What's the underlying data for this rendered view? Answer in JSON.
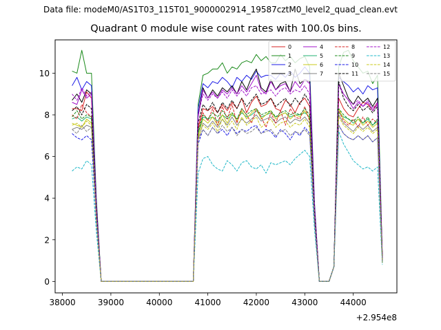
{
  "figure": {
    "suptitle": "Data file: modeM0/AS1T03_115T01_9000002914_19587cztM0_level2_quad_clean.evt",
    "title": "Quadrant 0 module wise count rates with 100.0s bins.",
    "offset_text": "+2.954e8"
  },
  "chart_data": {
    "type": "line",
    "title": "Quadrant 0 module wise count rates with 100.0s bins.",
    "xlabel": "",
    "ylabel": "",
    "x_offset": 295400000,
    "xlim": [
      37850,
      44900
    ],
    "ylim": [
      -0.55,
      11.6
    ],
    "xticks": [
      38000,
      39000,
      40000,
      41000,
      42000,
      43000,
      44000
    ],
    "yticks": [
      0,
      2,
      4,
      6,
      8,
      10
    ],
    "grid": false,
    "legend": {
      "position": "top-right",
      "columns": 4
    },
    "x": [
      38200,
      38300,
      38400,
      38500,
      38600,
      38700,
      38800,
      38900,
      39000,
      39100,
      39200,
      39300,
      39400,
      39500,
      39600,
      39700,
      39800,
      39900,
      40000,
      40100,
      40200,
      40300,
      40400,
      40500,
      40600,
      40700,
      40800,
      40900,
      41000,
      41100,
      41200,
      41300,
      41400,
      41500,
      41600,
      41700,
      41800,
      41900,
      42000,
      42100,
      42200,
      42300,
      42400,
      42500,
      42600,
      42700,
      42800,
      42900,
      43000,
      43100,
      43200,
      43300,
      43400,
      43500,
      43600,
      43700,
      43800,
      43900,
      44000,
      44100,
      44200,
      44300,
      44400,
      44500,
      44600
    ],
    "series": [
      {
        "name": "0",
        "color": "#d62020",
        "dash": "solid",
        "values": [
          8.3,
          8.3,
          8.2,
          9.1,
          8.8,
          3.5,
          0,
          0,
          0,
          0,
          0,
          0,
          0,
          0,
          0,
          0,
          0,
          0,
          0,
          0,
          0,
          0,
          0,
          0,
          0,
          0,
          7.4,
          8.3,
          8.2,
          8.4,
          8.1,
          8.5,
          8.2,
          8.6,
          8.3,
          8.8,
          8.1,
          8.6,
          8.9,
          8.4,
          8.5,
          8.8,
          8.3,
          8.2,
          8.7,
          8.5,
          8.1,
          8.6,
          8.8,
          8.4,
          3.4,
          0,
          0,
          0,
          0.7,
          8.8,
          8.3,
          8.0,
          7.9,
          8.3,
          8.6,
          8.5,
          8.2,
          8.6,
          1.2
        ]
      },
      {
        "name": "1",
        "color": "#1a8a1a",
        "dash": "solid",
        "values": [
          10.1,
          10.0,
          11.1,
          10.0,
          10.0,
          4.0,
          0,
          0,
          0,
          0,
          0,
          0,
          0,
          0,
          0,
          0,
          0,
          0,
          0,
          0,
          0,
          0,
          0,
          0,
          0,
          0,
          8.5,
          9.9,
          10.0,
          10.2,
          10.2,
          10.5,
          10.0,
          10.3,
          10.2,
          10.5,
          10.6,
          10.5,
          10.9,
          10.6,
          10.8,
          10.5,
          10.5,
          10.9,
          10.6,
          10.8,
          10.5,
          10.7,
          10.8,
          10.3,
          3.8,
          0,
          0,
          0,
          0.7,
          10.3,
          11.0,
          11.1,
          10.6,
          10.3,
          10.0,
          10.1,
          9.5,
          9.9,
          1.2
        ]
      },
      {
        "name": "2",
        "color": "#1a1ae6",
        "dash": "solid",
        "values": [
          9.4,
          9.8,
          9.2,
          9.6,
          9.4,
          3.8,
          0,
          0,
          0,
          0,
          0,
          0,
          0,
          0,
          0,
          0,
          0,
          0,
          0,
          0,
          0,
          0,
          0,
          0,
          0,
          0,
          8.3,
          9.5,
          9.3,
          9.6,
          9.5,
          9.8,
          9.6,
          9.3,
          9.8,
          9.6,
          9.9,
          9.7,
          10.1,
          9.8,
          9.9,
          9.9,
          9.7,
          10.0,
          9.8,
          10.1,
          9.8,
          10.0,
          10.3,
          10.0,
          3.7,
          0,
          0,
          0,
          0.7,
          9.8,
          9.6,
          9.4,
          9.1,
          9.3,
          9.0,
          9.4,
          9.2,
          9.3,
          1.1
        ]
      },
      {
        "name": "3",
        "color": "#000000",
        "dash": "solid",
        "values": [
          8.7,
          9.0,
          8.6,
          9.2,
          9.0,
          3.7,
          0,
          0,
          0,
          0,
          0,
          0,
          0,
          0,
          0,
          0,
          0,
          0,
          0,
          0,
          0,
          0,
          0,
          0,
          0,
          0,
          8.0,
          9.3,
          8.8,
          9.2,
          8.9,
          9.3,
          9.1,
          9.4,
          9.0,
          9.6,
          9.2,
          9.8,
          10.2,
          9.3,
          9.1,
          9.7,
          9.2,
          9.5,
          9.6,
          9.1,
          10.2,
          9.5,
          9.7,
          9.6,
          3.6,
          0,
          0,
          0,
          0.7,
          10.0,
          9.4,
          8.8,
          8.5,
          8.9,
          8.6,
          8.8,
          8.4,
          8.8,
          1.2
        ]
      },
      {
        "name": "4",
        "color": "#a010c8",
        "dash": "solid",
        "values": [
          8.6,
          8.5,
          9.2,
          8.8,
          9.0,
          3.6,
          0,
          0,
          0,
          0,
          0,
          0,
          0,
          0,
          0,
          0,
          0,
          0,
          0,
          0,
          0,
          0,
          0,
          0,
          0,
          0,
          7.9,
          9.2,
          8.8,
          9.1,
          8.8,
          9.2,
          9.0,
          9.3,
          9.0,
          9.4,
          9.1,
          9.5,
          9.9,
          9.2,
          9.0,
          9.6,
          9.2,
          9.4,
          9.5,
          9.1,
          9.6,
          9.3,
          9.7,
          9.5,
          3.6,
          0,
          0,
          0,
          0.7,
          9.5,
          9.0,
          8.7,
          8.3,
          8.6,
          8.4,
          8.6,
          8.2,
          8.5,
          1.1
        ]
      },
      {
        "name": "5",
        "color": "#20b070",
        "dash": "solid",
        "values": [
          7.8,
          7.9,
          7.7,
          7.9,
          7.8,
          3.2,
          0,
          0,
          0,
          0,
          0,
          0,
          0,
          0,
          0,
          0,
          0,
          0,
          0,
          0,
          0,
          0,
          0,
          0,
          0,
          0,
          7.1,
          7.9,
          7.8,
          7.9,
          7.7,
          8.0,
          7.8,
          8.0,
          7.8,
          8.1,
          7.9,
          8.0,
          8.2,
          7.9,
          8.0,
          8.1,
          7.9,
          8.0,
          8.1,
          7.9,
          8.0,
          8.0,
          8.1,
          7.9,
          3.1,
          0,
          0,
          0,
          0.7,
          8.1,
          7.9,
          7.8,
          7.6,
          7.8,
          7.6,
          7.8,
          7.5,
          7.7,
          1.0
        ]
      },
      {
        "name": "6",
        "color": "#c8c81a",
        "dash": "solid",
        "values": [
          7.6,
          7.5,
          7.4,
          7.8,
          7.6,
          3.1,
          0,
          0,
          0,
          0,
          0,
          0,
          0,
          0,
          0,
          0,
          0,
          0,
          0,
          0,
          0,
          0,
          0,
          0,
          0,
          0,
          7.0,
          7.8,
          7.6,
          7.9,
          7.5,
          8.0,
          7.6,
          8.1,
          7.7,
          8.2,
          7.8,
          8.1,
          8.3,
          7.8,
          8.0,
          8.2,
          7.8,
          8.0,
          8.1,
          7.8,
          8.0,
          7.9,
          8.2,
          7.8,
          3.1,
          0,
          0,
          0,
          0.7,
          8.3,
          7.8,
          7.6,
          7.5,
          7.8,
          7.5,
          7.7,
          7.4,
          7.6,
          1.0
        ]
      },
      {
        "name": "7",
        "color": "#808080",
        "dash": "solid",
        "values": [
          7.3,
          7.4,
          7.3,
          7.5,
          7.4,
          3.0,
          0,
          0,
          0,
          0,
          0,
          0,
          0,
          0,
          0,
          0,
          0,
          0,
          0,
          0,
          0,
          0,
          0,
          0,
          0,
          0,
          6.8,
          7.6,
          7.4,
          7.7,
          7.4,
          7.8,
          7.5,
          7.9,
          7.5,
          7.8,
          7.6,
          7.8,
          8.0,
          7.7,
          7.8,
          7.9,
          7.6,
          7.8,
          7.9,
          7.6,
          7.8,
          7.7,
          7.9,
          7.6,
          3.0,
          0,
          0,
          0,
          0.7,
          8.0,
          7.6,
          7.4,
          7.2,
          7.5,
          7.3,
          7.5,
          7.2,
          7.4,
          0.9
        ]
      },
      {
        "name": "8",
        "color": "#d62020",
        "dash": "dashed",
        "values": [
          8.0,
          7.8,
          8.5,
          8.1,
          7.9,
          3.3,
          0,
          0,
          0,
          0,
          0,
          0,
          0,
          0,
          0,
          0,
          0,
          0,
          0,
          0,
          0,
          0,
          0,
          0,
          0,
          0,
          7.3,
          8.1,
          7.7,
          8.3,
          7.5,
          8.4,
          7.8,
          8.5,
          7.6,
          8.3,
          8.0,
          7.6,
          8.3,
          7.9,
          7.4,
          8.1,
          7.6,
          8.2,
          7.5,
          8.3,
          7.9,
          7.8,
          8.4,
          7.7,
          3.2,
          0,
          0,
          0,
          0.7,
          8.2,
          7.7,
          7.5,
          7.8,
          7.4,
          7.9,
          7.5,
          7.8,
          7.6,
          1.0
        ]
      },
      {
        "name": "9",
        "color": "#1a8a1a",
        "dash": "dashed",
        "values": [
          7.9,
          8.2,
          7.8,
          8.0,
          7.9,
          3.2,
          0,
          0,
          0,
          0,
          0,
          0,
          0,
          0,
          0,
          0,
          0,
          0,
          0,
          0,
          0,
          0,
          0,
          0,
          0,
          0,
          7.2,
          8.0,
          7.8,
          8.1,
          7.9,
          8.2,
          7.9,
          8.1,
          7.8,
          8.3,
          8.0,
          8.2,
          8.3,
          8.0,
          8.1,
          8.2,
          7.9,
          8.1,
          8.2,
          8.0,
          8.1,
          8.0,
          8.3,
          8.0,
          3.2,
          0,
          0,
          0,
          0.7,
          8.3,
          8.0,
          7.8,
          7.7,
          7.9,
          7.6,
          7.9,
          7.5,
          7.8,
          1.0
        ]
      },
      {
        "name": "10",
        "color": "#1a1ae6",
        "dash": "dashed",
        "values": [
          7.1,
          6.9,
          6.8,
          7.0,
          6.8,
          2.9,
          0,
          0,
          0,
          0,
          0,
          0,
          0,
          0,
          0,
          0,
          0,
          0,
          0,
          0,
          0,
          0,
          0,
          0,
          0,
          0,
          6.6,
          7.3,
          7.0,
          7.4,
          7.1,
          7.3,
          7.0,
          7.4,
          7.1,
          7.3,
          7.2,
          7.4,
          7.5,
          7.1,
          7.3,
          7.2,
          6.9,
          7.3,
          7.1,
          6.8,
          7.2,
          7.0,
          7.4,
          7.1,
          2.9,
          0,
          0,
          0,
          0.7,
          7.5,
          7.1,
          6.9,
          6.8,
          7.0,
          6.8,
          7.0,
          6.7,
          6.9,
          0.9
        ]
      },
      {
        "name": "11",
        "color": "#000000",
        "dash": "dashed",
        "values": [
          8.2,
          8.4,
          8.0,
          8.5,
          8.3,
          3.4,
          0,
          0,
          0,
          0,
          0,
          0,
          0,
          0,
          0,
          0,
          0,
          0,
          0,
          0,
          0,
          0,
          0,
          0,
          0,
          0,
          7.6,
          8.5,
          8.2,
          8.6,
          8.1,
          8.6,
          8.3,
          8.7,
          8.3,
          8.8,
          8.4,
          8.7,
          9.0,
          8.5,
          8.6,
          8.8,
          8.4,
          8.6,
          8.8,
          8.4,
          8.8,
          8.5,
          9.0,
          8.6,
          3.4,
          0,
          0,
          0,
          0.7,
          9.6,
          8.8,
          8.4,
          8.2,
          8.5,
          8.2,
          8.4,
          8.1,
          8.4,
          1.1
        ]
      },
      {
        "name": "12",
        "color": "#a010c8",
        "dash": "dashed",
        "values": [
          9.0,
          8.7,
          9.3,
          8.9,
          9.1,
          3.6,
          0,
          0,
          0,
          0,
          0,
          0,
          0,
          0,
          0,
          0,
          0,
          0,
          0,
          0,
          0,
          0,
          0,
          0,
          0,
          0,
          8.0,
          9.0,
          8.7,
          9.0,
          8.8,
          9.1,
          8.8,
          9.2,
          8.9,
          9.2,
          8.9,
          9.3,
          9.4,
          9.0,
          9.1,
          9.2,
          8.9,
          9.2,
          9.3,
          9.0,
          9.2,
          9.1,
          9.4,
          9.0,
          3.6,
          0,
          0,
          0,
          0.7,
          9.4,
          9.0,
          8.7,
          8.5,
          8.7,
          8.4,
          8.7,
          8.3,
          8.6,
          1.1
        ]
      },
      {
        "name": "13",
        "color": "#20b8c8",
        "dash": "dashed",
        "values": [
          5.3,
          5.5,
          5.4,
          5.8,
          5.6,
          2.4,
          0,
          0,
          0,
          0,
          0,
          0,
          0,
          0,
          0,
          0,
          0,
          0,
          0,
          0,
          0,
          0,
          0,
          0,
          0,
          0,
          5.2,
          5.9,
          6.0,
          5.6,
          5.4,
          5.3,
          5.8,
          5.6,
          5.3,
          5.7,
          5.8,
          5.5,
          5.4,
          5.6,
          5.2,
          5.7,
          5.6,
          5.7,
          5.8,
          5.6,
          5.9,
          6.1,
          6.3,
          6.0,
          2.5,
          0,
          0,
          0,
          0.7,
          7.2,
          6.6,
          6.2,
          5.8,
          5.6,
          5.4,
          5.5,
          5.3,
          5.5,
          0.8
        ]
      },
      {
        "name": "14",
        "color": "#c8c81a",
        "dash": "dashed",
        "values": [
          7.5,
          7.6,
          7.4,
          7.7,
          7.5,
          3.0,
          0,
          0,
          0,
          0,
          0,
          0,
          0,
          0,
          0,
          0,
          0,
          0,
          0,
          0,
          0,
          0,
          0,
          0,
          0,
          0,
          6.9,
          7.5,
          7.3,
          7.6,
          7.2,
          7.8,
          7.4,
          7.7,
          7.3,
          7.9,
          7.5,
          7.7,
          7.9,
          7.4,
          7.6,
          7.8,
          7.4,
          7.6,
          7.7,
          7.4,
          7.6,
          7.5,
          7.8,
          7.4,
          3.0,
          0,
          0,
          0,
          0.7,
          7.9,
          7.5,
          7.3,
          7.1,
          7.4,
          7.2,
          7.4,
          7.1,
          7.3,
          0.9
        ]
      },
      {
        "name": "15",
        "color": "#808080",
        "dash": "dashed",
        "values": [
          7.3,
          7.1,
          7.5,
          7.2,
          7.4,
          3.0,
          0,
          0,
          0,
          0,
          0,
          0,
          0,
          0,
          0,
          0,
          0,
          0,
          0,
          0,
          0,
          0,
          0,
          0,
          0,
          0,
          6.8,
          7.3,
          7.0,
          7.4,
          7.1,
          7.5,
          7.2,
          7.4,
          7.0,
          7.3,
          7.1,
          7.2,
          7.4,
          7.1,
          7.2,
          7.3,
          7.0,
          7.2,
          7.3,
          7.0,
          7.2,
          7.1,
          7.3,
          7.0,
          2.9,
          0,
          0,
          0,
          0.7,
          7.5,
          7.1,
          6.9,
          6.8,
          7.0,
          6.8,
          7.0,
          6.7,
          6.9,
          0.9
        ]
      }
    ]
  }
}
